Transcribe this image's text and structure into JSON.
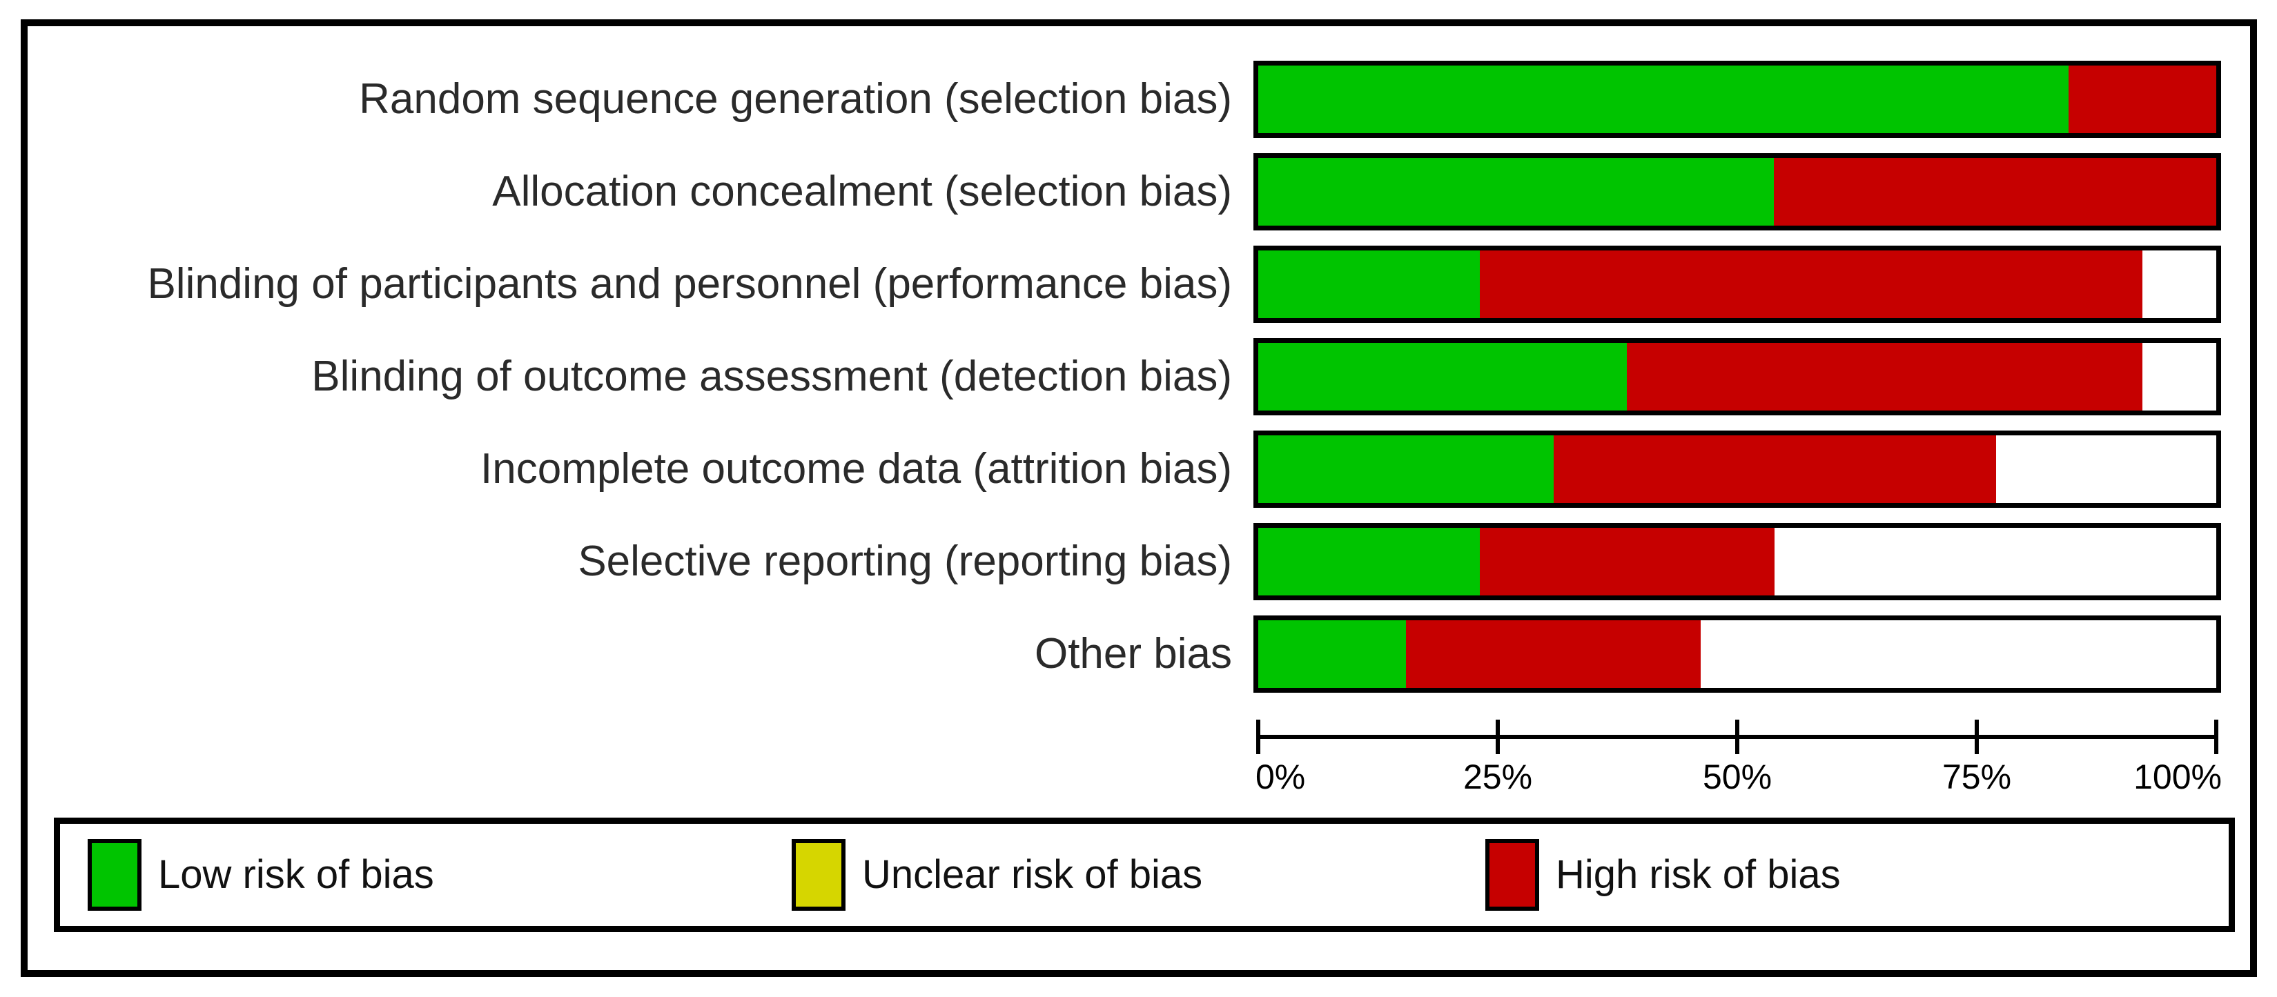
{
  "figure": {
    "kind": "risk-of-bias-graph",
    "background": "#ffffff",
    "border_color": "#000000"
  },
  "colors": {
    "low": "#00C400",
    "unclear": "#D6D600",
    "high": "#C60000",
    "unfilled": "#FFFFFF"
  },
  "chart_data": {
    "type": "bar",
    "orientation": "horizontal-stacked",
    "categories": [
      "Random sequence generation (selection bias)",
      "Allocation concealment (selection bias)",
      "Blinding of participants and personnel (performance bias)",
      "Blinding of outcome assessment (detection bias)",
      "Incomplete outcome data (attrition bias)",
      "Selective reporting (reporting bias)",
      "Other bias"
    ],
    "series": [
      {
        "name": "Low risk of bias",
        "color": "#00C400",
        "values": [
          84.6,
          53.8,
          23.1,
          38.5,
          30.8,
          23.1,
          15.4
        ]
      },
      {
        "name": "Unclear risk of bias",
        "color": "#D6D600",
        "values": [
          0,
          0,
          0,
          0,
          0,
          0,
          0
        ]
      },
      {
        "name": "High risk of bias",
        "color": "#C60000",
        "values": [
          15.4,
          46.2,
          69.2,
          53.8,
          46.2,
          30.8,
          30.8
        ]
      }
    ],
    "unfilled_remainder": [
      0,
      0,
      7.7,
      7.7,
      23.1,
      46.2,
      53.8
    ],
    "xlim": [
      0,
      100
    ],
    "xticks": [
      {
        "label": "0%",
        "percent": 0
      },
      {
        "label": "25%",
        "percent": 25
      },
      {
        "label": "50%",
        "percent": 50
      },
      {
        "label": "75%",
        "percent": 75
      },
      {
        "label": "100%",
        "percent": 100
      }
    ],
    "title": "",
    "xlabel": "",
    "ylabel": "",
    "grid": false,
    "legend_position": "bottom"
  },
  "legend": {
    "items": [
      {
        "label": "Low risk of bias",
        "color": "#00C400"
      },
      {
        "label": "Unclear risk of bias",
        "color": "#D6D600"
      },
      {
        "label": "High risk of bias",
        "color": "#C60000"
      }
    ]
  }
}
